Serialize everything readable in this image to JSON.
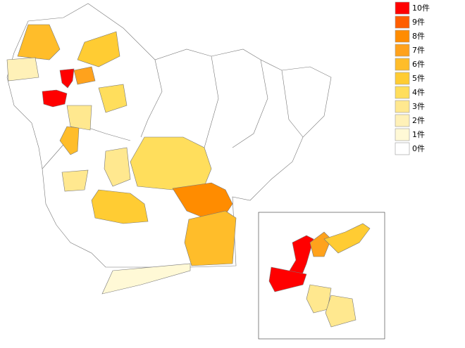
{
  "legend": [
    {
      "value": 10,
      "label": "10件",
      "color": "#ff0000"
    },
    {
      "value": 9,
      "label": "9件",
      "color": "#ff5e00"
    },
    {
      "value": 8,
      "label": "8件",
      "color": "#ff8c00"
    },
    {
      "value": 7,
      "label": "7件",
      "color": "#ffa21c"
    },
    {
      "value": 6,
      "label": "6件",
      "color": "#ffbd2a"
    },
    {
      "value": 5,
      "label": "5件",
      "color": "#ffcc33"
    },
    {
      "value": 4,
      "label": "4件",
      "color": "#ffde5c"
    },
    {
      "value": 3,
      "label": "3件",
      "color": "#ffe88f"
    },
    {
      "value": 2,
      "label": "2件",
      "color": "#fff1b8"
    },
    {
      "value": 1,
      "label": "1件",
      "color": "#fff9d6"
    },
    {
      "value": 0,
      "label": "0件",
      "color": "#ffffff"
    }
  ],
  "region_values": [
    10,
    10,
    6,
    4,
    8,
    6,
    1,
    5,
    3,
    6,
    3,
    5,
    7,
    2,
    4,
    3,
    10,
    10,
    7,
    5,
    3,
    3
  ]
}
